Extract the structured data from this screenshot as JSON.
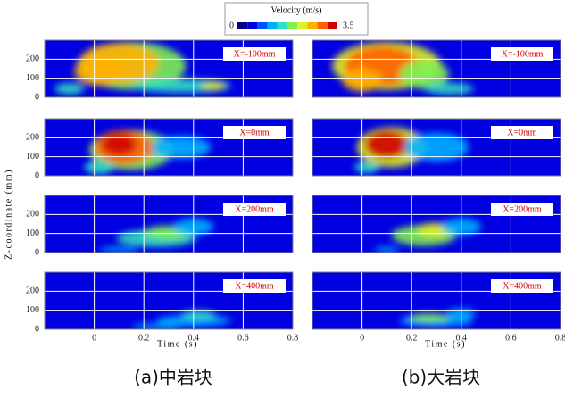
{
  "colorbar": {
    "title": "Velocity (m/s)",
    "min": 0,
    "max": 3.5,
    "colors": [
      "#00008b",
      "#0000e0",
      "#0050ff",
      "#00b0ff",
      "#30e0c0",
      "#80f050",
      "#e0f020",
      "#ffb000",
      "#ff6000",
      "#d00000"
    ]
  },
  "axes": {
    "xlabel": "Time (s)",
    "ylabel": "Z-coordinate (mm)",
    "xlim": [
      -0.2,
      0.8
    ],
    "xticks": [
      0,
      0.2,
      0.4,
      0.6,
      0.8
    ],
    "ylim": [
      0,
      300
    ],
    "yticks": [
      0,
      100,
      200
    ]
  },
  "panels": [
    {
      "caption": "(a)中岩块",
      "plots": [
        {
          "label": "X=-100mm"
        },
        {
          "label": "X=0mm"
        },
        {
          "label": "X=200mm"
        },
        {
          "label": "X=400mm"
        }
      ]
    },
    {
      "caption": "(b)大岩块",
      "plots": [
        {
          "label": "X=-100mm"
        },
        {
          "label": "X=0mm"
        },
        {
          "label": "X=200mm"
        },
        {
          "label": "X=400mm"
        }
      ]
    }
  ]
}
